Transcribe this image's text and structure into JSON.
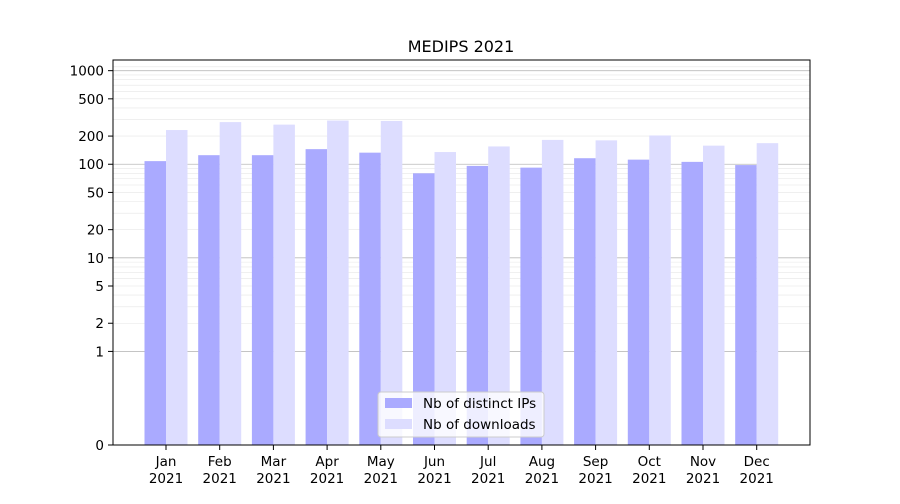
{
  "chart_data": {
    "type": "bar",
    "title": "MEDIPS 2021",
    "xlabel": "",
    "ylabel": "",
    "yscale": "symlog",
    "ylim": [
      0,
      1300
    ],
    "grid": "horizontal",
    "legend_position": "lower-center",
    "categories": [
      [
        "Jan",
        "2021"
      ],
      [
        "Feb",
        "2021"
      ],
      [
        "Mar",
        "2021"
      ],
      [
        "Apr",
        "2021"
      ],
      [
        "May",
        "2021"
      ],
      [
        "Jun",
        "2021"
      ],
      [
        "Jul",
        "2021"
      ],
      [
        "Aug",
        "2021"
      ],
      [
        "Sep",
        "2021"
      ],
      [
        "Oct",
        "2021"
      ],
      [
        "Nov",
        "2021"
      ],
      [
        "Dec",
        "2021"
      ]
    ],
    "y_ticks": [
      0,
      1,
      2,
      5,
      10,
      20,
      50,
      100,
      200,
      500,
      1000
    ],
    "series": [
      {
        "name": "Nb of distinct IPs",
        "color": "#aaaaff",
        "values": [
          108,
          125,
          125,
          145,
          133,
          80,
          96,
          92,
          116,
          112,
          106,
          98
        ]
      },
      {
        "name": "Nb of downloads",
        "color": "#ddddff",
        "values": [
          232,
          282,
          265,
          293,
          290,
          135,
          155,
          182,
          180,
          203,
          158,
          168
        ]
      }
    ]
  }
}
